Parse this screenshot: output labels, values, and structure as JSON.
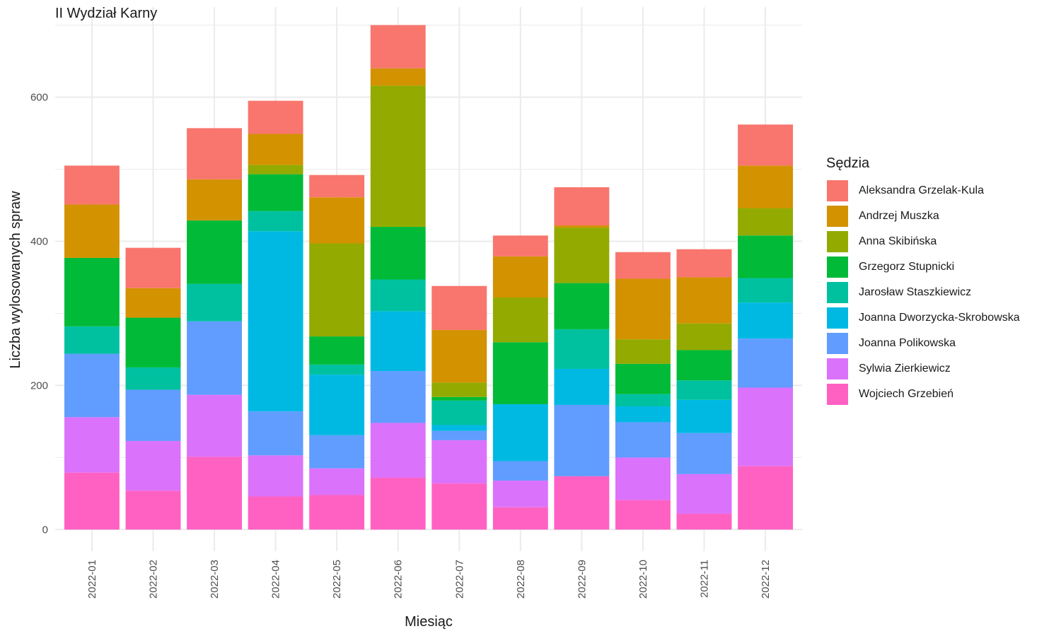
{
  "chart_data": {
    "type": "bar",
    "stacked": true,
    "title": "II Wydział Karny",
    "xlabel": "Miesiąc",
    "ylabel": "Liczba wylosowanych spraw",
    "legend_title": "Sędzia",
    "legend_position": "right",
    "grid": true,
    "ylim": [
      -30,
      725
    ],
    "yticks": [
      0,
      200,
      400,
      600
    ],
    "categories": [
      "2022-01",
      "2022-02",
      "2022-03",
      "2022-04",
      "2022-05",
      "2022-06",
      "2022-07",
      "2022-08",
      "2022-09",
      "2022-10",
      "2022-11",
      "2022-12"
    ],
    "series": [
      {
        "name": "Aleksandra Grzelak-Kula",
        "color": "#F8766D",
        "values": [
          54,
          56,
          71,
          46,
          31,
          60,
          61,
          29,
          53,
          37,
          39,
          57
        ]
      },
      {
        "name": "Andrzej Muszka",
        "color": "#D39200",
        "values": [
          74,
          41,
          57,
          43,
          64,
          24,
          73,
          57,
          3,
          84,
          64,
          59
        ]
      },
      {
        "name": "Anna Skibińska",
        "color": "#93AA00",
        "values": [
          0,
          0,
          0,
          13,
          129,
          196,
          20,
          62,
          77,
          34,
          37,
          38
        ]
      },
      {
        "name": "Grzegorz Stupnicki",
        "color": "#00BA38",
        "values": [
          95,
          69,
          88,
          51,
          39,
          73,
          5,
          86,
          64,
          42,
          42,
          59
        ]
      },
      {
        "name": "Jarosław Staszkiewicz",
        "color": "#00C19F",
        "values": [
          38,
          31,
          52,
          28,
          14,
          44,
          34,
          0,
          55,
          17,
          27,
          34
        ]
      },
      {
        "name": "Joanna Dworzycka-Skrobowska",
        "color": "#00B9E3",
        "values": [
          0,
          0,
          0,
          250,
          84,
          83,
          8,
          79,
          50,
          22,
          46,
          50
        ]
      },
      {
        "name": "Joanna Polikowska",
        "color": "#619CFF",
        "values": [
          88,
          71,
          102,
          61,
          46,
          72,
          13,
          27,
          99,
          49,
          57,
          68
        ]
      },
      {
        "name": "Sylwia Zierkiewicz",
        "color": "#DB72FB",
        "values": [
          77,
          69,
          86,
          57,
          37,
          76,
          60,
          37,
          0,
          59,
          55,
          109
        ]
      },
      {
        "name": "Wojciech Grzebień",
        "color": "#FF61C3",
        "values": [
          79,
          54,
          101,
          46,
          48,
          72,
          64,
          31,
          74,
          41,
          22,
          88
        ]
      }
    ]
  }
}
